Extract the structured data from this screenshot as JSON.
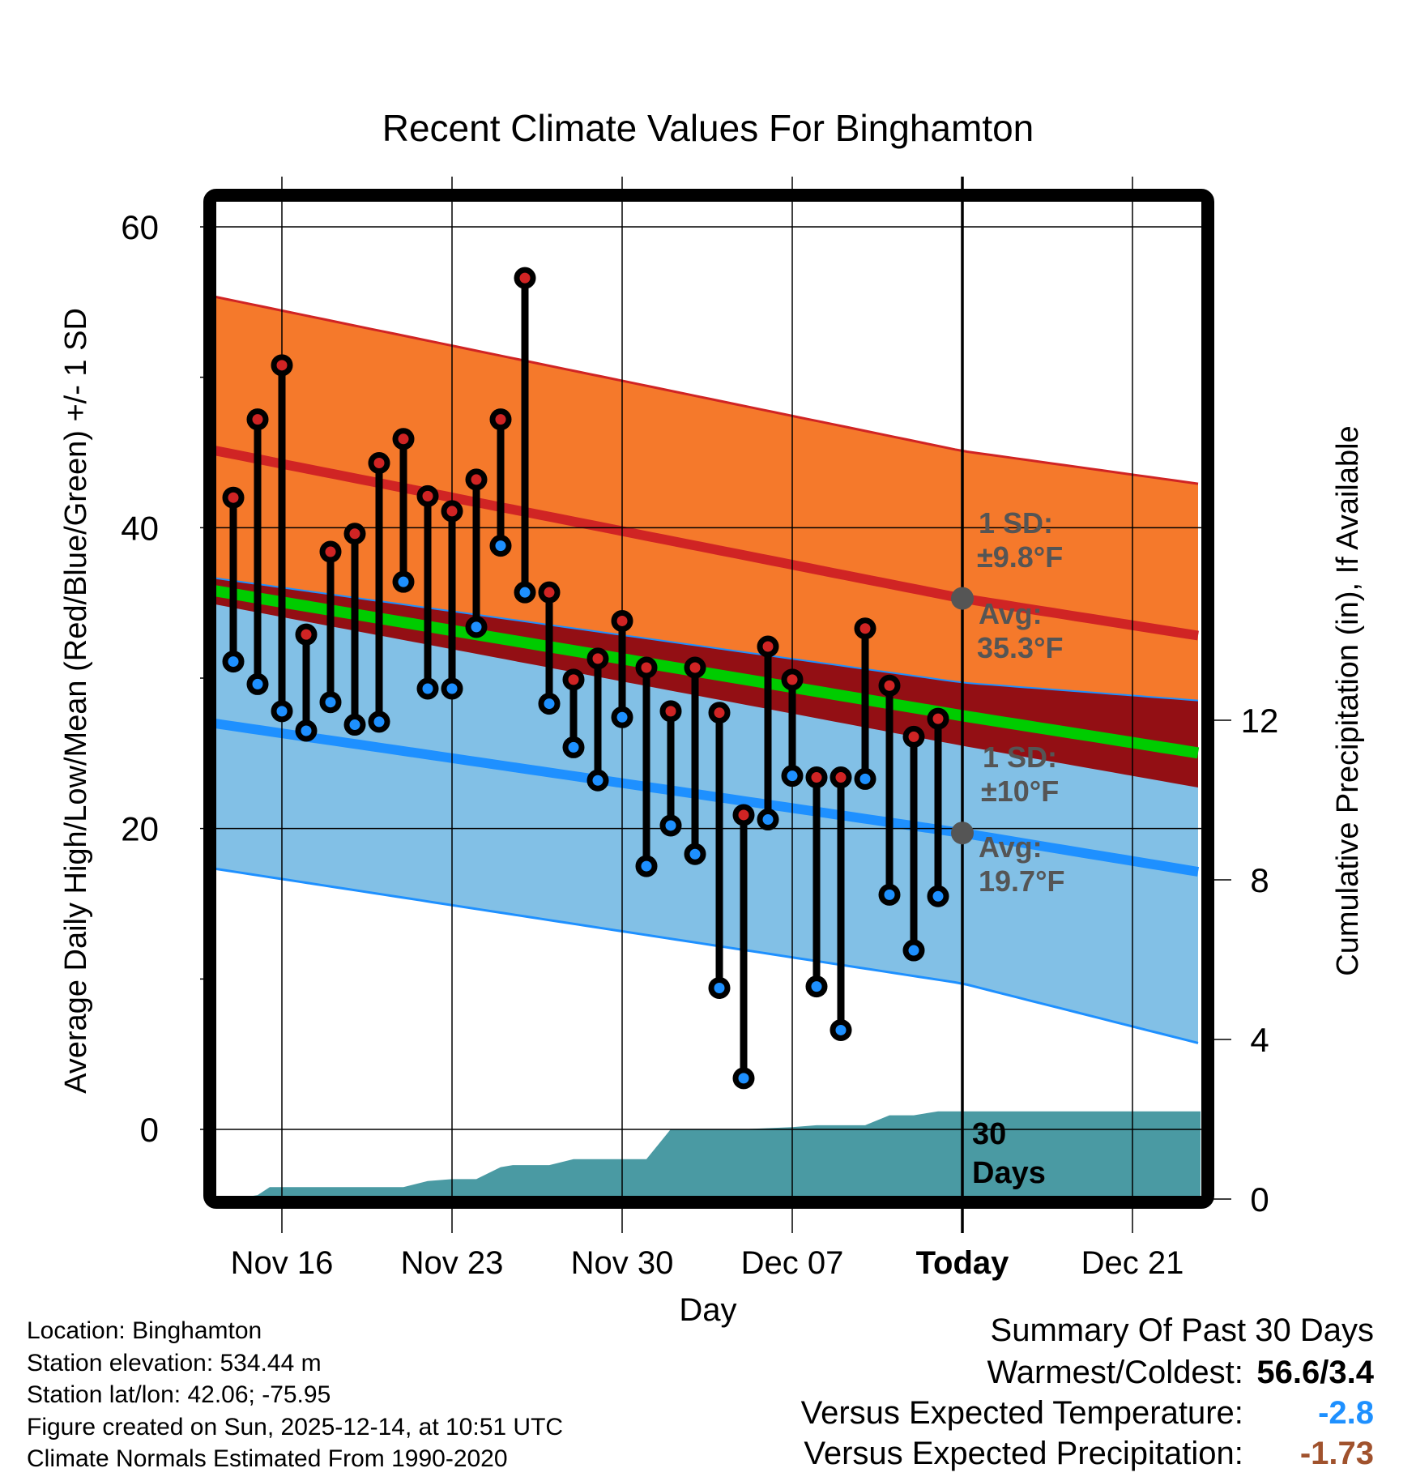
{
  "chart_data": {
    "type": "line",
    "title": "Recent Climate Values For Binghamton",
    "xlabel": "Day",
    "ylabel": "Average Daily High/Low/Mean (Red/Blue/Green) +/- 1 SD",
    "ylabel_right": "Cumulative Precipitation (in), If Available",
    "ylim": [
      -4,
      62
    ],
    "ylim_right": [
      0,
      18
    ],
    "yticks": [
      0,
      20,
      40,
      60
    ],
    "yticks_right": [
      0,
      4,
      8,
      12
    ],
    "xlim_days": [
      -36.3,
      9.8
    ],
    "xticks": [
      {
        "day": -28,
        "label": "Nov 16"
      },
      {
        "day": -21,
        "label": "Nov 23"
      },
      {
        "day": -14,
        "label": "Nov 30"
      },
      {
        "day": -7,
        "label": "Dec 07"
      },
      {
        "day": 0,
        "label": "Today"
      },
      {
        "day": 7,
        "label": "Dec 21"
      }
    ],
    "grid": true,
    "days": [
      -30,
      -29,
      -28,
      -27,
      -26,
      -25,
      -24,
      -23,
      -22,
      -21,
      -20,
      -19,
      -18,
      -17,
      -16,
      -15,
      -14,
      -13,
      -12,
      -11,
      -10,
      -9,
      -8,
      -7,
      -6,
      -5,
      -4,
      -3,
      -2,
      -1
    ],
    "highs": [
      42.0,
      47.2,
      50.8,
      32.9,
      38.4,
      39.6,
      44.3,
      45.9,
      42.1,
      41.1,
      43.2,
      47.2,
      56.6,
      35.7,
      29.9,
      31.3,
      33.8,
      30.7,
      27.8,
      30.7,
      27.7,
      20.9,
      32.1,
      29.9,
      23.4,
      23.4,
      33.3,
      29.5,
      26.1,
      27.3
    ],
    "lows": [
      31.1,
      29.6,
      27.8,
      26.5,
      28.4,
      26.9,
      27.1,
      36.4,
      29.3,
      29.3,
      33.4,
      38.8,
      35.7,
      28.3,
      25.4,
      23.2,
      27.4,
      17.5,
      20.2,
      18.3,
      9.4,
      3.4,
      20.6,
      23.5,
      9.5,
      6.6,
      23.3,
      15.6,
      11.9,
      15.5
    ],
    "normals": {
      "day_anchors": [
        -36.3,
        0,
        9.8
      ],
      "high_avg": [
        46.9,
        35.3,
        32.8
      ],
      "high_sd": [
        10.3,
        9.8,
        10.1
      ],
      "low_avg": [
        28.3,
        19.7,
        17.1
      ],
      "low_sd": [
        9.6,
        10.0,
        11.4
      ],
      "mean_avg": [
        37.3,
        27.5,
        25.0
      ]
    },
    "precip_cumulative": {
      "days": [
        -36.3,
        -32,
        -30,
        -29,
        -28.5,
        -23,
        -22,
        -21,
        -20,
        -19,
        -18.5,
        -17,
        -16,
        -14,
        -13,
        -12,
        -9,
        -7,
        -6,
        -4,
        -3,
        -2,
        -1,
        0,
        9.8
      ],
      "values": [
        0,
        0,
        0,
        0.1,
        0.3,
        0.3,
        0.45,
        0.5,
        0.5,
        0.8,
        0.85,
        0.85,
        1.0,
        1.0,
        1.0,
        1.75,
        1.75,
        1.8,
        1.85,
        1.85,
        2.1,
        2.1,
        2.2,
        2.2,
        2.2
      ]
    },
    "annotations": {
      "high_sd": "1 SD:",
      "high_sd_val": "±9.8°F",
      "high_avg": "Avg:",
      "high_avg_val": "35.3°F",
      "low_sd": "1 SD:",
      "low_sd_val": "±10°F",
      "low_avg": "Avg:",
      "low_avg_val": "19.7°F",
      "window_line1": "30",
      "window_line2": "Days"
    },
    "colors": {
      "high_band": "#f5792b",
      "high_line": "#d02424",
      "low_band": "#82c0e6",
      "low_line": "#1e90ff",
      "mean_line": "#00cc00",
      "overlap": "#930f14",
      "precip": "#4a9aa3",
      "annotation": "#555555"
    }
  },
  "info": {
    "location": "Location: Binghamton",
    "elevation": "Station elevation: 534.44 m",
    "latlon": "Station lat/lon: 42.06; -75.95",
    "created": "Figure created on Sun, 2025-12-14, at 10:51 UTC",
    "normals": "Climate Normals Estimated From 1990-2020"
  },
  "summary": {
    "title": "Summary Of Past 30 Days",
    "warmest_label": "Warmest/Coldest:",
    "warmest_value": "56.6/3.4",
    "temp_label": "Versus Expected Temperature:",
    "temp_value": "-2.8",
    "temp_color": "#1e90ff",
    "precip_label": "Versus Expected Precipitation:",
    "precip_value": "-1.73",
    "precip_color": "#a0522d"
  }
}
